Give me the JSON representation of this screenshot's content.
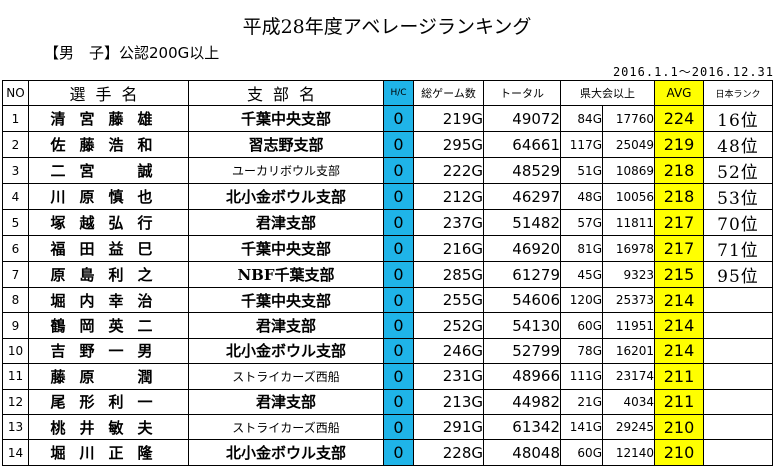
{
  "title": "平成28年度アベレージランキング",
  "subtitle": "【男　子】公認200G以上",
  "period": "2016.1.1～2016.12.31",
  "columns": {
    "no": "NO",
    "name": "選手名",
    "branch": "支部名",
    "hc": "H/C",
    "games": "総ゲーム数",
    "total": "トータル",
    "pref": "県大会以上",
    "avg": "AVG",
    "japan_rank": "日本ランク"
  },
  "colors": {
    "hc_bg": "#1fb4e8",
    "avg_bg": "#ffff00"
  },
  "rows": [
    {
      "no": "1",
      "name": "清宮藤雄",
      "branch": "千葉中央支部",
      "branch_small": false,
      "hc": "0",
      "games": "219G",
      "total": "49072",
      "pref_games": "84G",
      "pref_total": "17760",
      "avg": "224",
      "japan_rank": "16位"
    },
    {
      "no": "2",
      "name": "佐藤浩和",
      "branch": "習志野支部",
      "branch_small": false,
      "hc": "0",
      "games": "295G",
      "total": "64661",
      "pref_games": "117G",
      "pref_total": "25049",
      "avg": "219",
      "japan_rank": "48位"
    },
    {
      "no": "3",
      "name": "二宮　誠",
      "branch": "ユーカリボウル支部",
      "branch_small": true,
      "hc": "0",
      "games": "222G",
      "total": "48529",
      "pref_games": "51G",
      "pref_total": "10869",
      "avg": "218",
      "japan_rank": "52位"
    },
    {
      "no": "4",
      "name": "川原慎也",
      "branch": "北小金ボウル支部",
      "branch_small": false,
      "hc": "0",
      "games": "212G",
      "total": "46297",
      "pref_games": "48G",
      "pref_total": "10056",
      "avg": "218",
      "japan_rank": "53位"
    },
    {
      "no": "5",
      "name": "塚越弘行",
      "branch": "君津支部",
      "branch_small": false,
      "hc": "0",
      "games": "237G",
      "total": "51482",
      "pref_games": "57G",
      "pref_total": "11811",
      "avg": "217",
      "japan_rank": "70位"
    },
    {
      "no": "6",
      "name": "福田益巳",
      "branch": "千葉中央支部",
      "branch_small": false,
      "hc": "0",
      "games": "216G",
      "total": "46920",
      "pref_games": "81G",
      "pref_total": "16978",
      "avg": "217",
      "japan_rank": "71位"
    },
    {
      "no": "7",
      "name": "原島利之",
      "branch": "NBF千葉支部",
      "branch_small": false,
      "hc": "0",
      "games": "285G",
      "total": "61279",
      "pref_games": "45G",
      "pref_total": "9323",
      "avg": "215",
      "japan_rank": "95位"
    },
    {
      "no": "8",
      "name": "堀内幸治",
      "branch": "千葉中央支部",
      "branch_small": false,
      "hc": "0",
      "games": "255G",
      "total": "54606",
      "pref_games": "120G",
      "pref_total": "25373",
      "avg": "214",
      "japan_rank": ""
    },
    {
      "no": "9",
      "name": "鶴岡英二",
      "branch": "君津支部",
      "branch_small": false,
      "hc": "0",
      "games": "252G",
      "total": "54130",
      "pref_games": "60G",
      "pref_total": "11951",
      "avg": "214",
      "japan_rank": ""
    },
    {
      "no": "10",
      "name": "吉野一男",
      "branch": "北小金ボウル支部",
      "branch_small": false,
      "hc": "0",
      "games": "246G",
      "total": "52799",
      "pref_games": "78G",
      "pref_total": "16201",
      "avg": "214",
      "japan_rank": ""
    },
    {
      "no": "11",
      "name": "藤原　潤",
      "branch": "ストライカーズ西船",
      "branch_small": true,
      "hc": "0",
      "games": "231G",
      "total": "48966",
      "pref_games": "111G",
      "pref_total": "23174",
      "avg": "211",
      "japan_rank": ""
    },
    {
      "no": "12",
      "name": "尾形利一",
      "branch": "君津支部",
      "branch_small": false,
      "hc": "0",
      "games": "213G",
      "total": "44982",
      "pref_games": "21G",
      "pref_total": "4034",
      "avg": "211",
      "japan_rank": ""
    },
    {
      "no": "13",
      "name": "桃井敏夫",
      "branch": "ストライカーズ西船",
      "branch_small": true,
      "hc": "0",
      "games": "291G",
      "total": "61342",
      "pref_games": "141G",
      "pref_total": "29245",
      "avg": "210",
      "japan_rank": ""
    },
    {
      "no": "14",
      "name": "堀川正隆",
      "branch": "北小金ボウル支部",
      "branch_small": false,
      "hc": "0",
      "games": "228G",
      "total": "48048",
      "pref_games": "60G",
      "pref_total": "12140",
      "avg": "210",
      "japan_rank": ""
    }
  ]
}
